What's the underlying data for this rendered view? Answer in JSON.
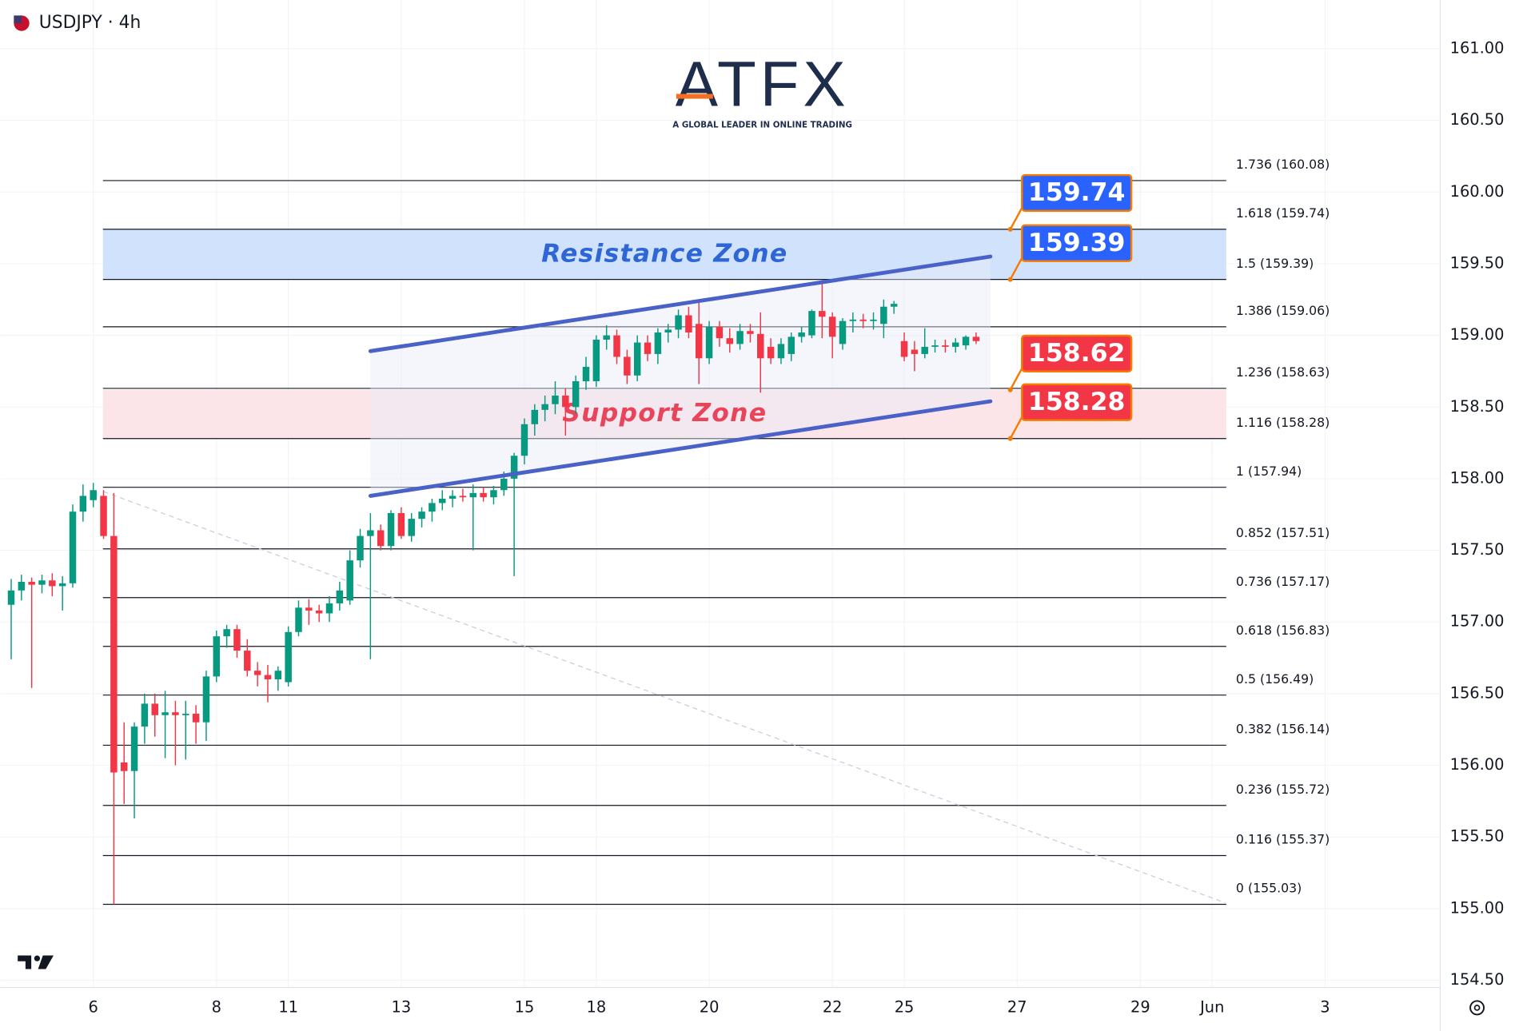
{
  "chart_data": {
    "type": "candlestick",
    "title": "USDJPY · 4h",
    "logo": {
      "name": "ATFX",
      "tagline": "A GLOBAL LEADER IN ONLINE TRADING"
    },
    "up_color": "#089981",
    "down_color": "#f23645",
    "grid": true,
    "xlim": [
      -9.06,
      131.22
    ],
    "ylim": [
      154.45,
      161.34
    ],
    "xticks": [
      {
        "value": 0,
        "label": "6"
      },
      {
        "value": 12,
        "label": "8"
      },
      {
        "value": 19,
        "label": "11"
      },
      {
        "value": 30,
        "label": "13"
      },
      {
        "value": 42,
        "label": "15"
      },
      {
        "value": 49,
        "label": "18"
      },
      {
        "value": 60,
        "label": "20"
      },
      {
        "value": 72,
        "label": "22"
      },
      {
        "value": 79,
        "label": "25"
      },
      {
        "value": 90,
        "label": "27"
      },
      {
        "value": 102,
        "label": "29"
      },
      {
        "value": 109,
        "label": "Jun"
      },
      {
        "value": 120,
        "label": "3"
      }
    ],
    "yticks": [
      {
        "value": 154.5,
        "label": "154.50"
      },
      {
        "value": 155,
        "label": "155.00"
      },
      {
        "value": 155.5,
        "label": "155.50"
      },
      {
        "value": 156,
        "label": "156.00"
      },
      {
        "value": 156.5,
        "label": "156.50"
      },
      {
        "value": 157,
        "label": "157.00"
      },
      {
        "value": 157.5,
        "label": "157.50"
      },
      {
        "value": 158,
        "label": "158.00"
      },
      {
        "value": 158.5,
        "label": "158.50"
      },
      {
        "value": 159,
        "label": "159.00"
      },
      {
        "value": 159.5,
        "label": "159.50"
      },
      {
        "value": 160,
        "label": "160.00"
      },
      {
        "value": 160.5,
        "label": "160.50"
      },
      {
        "value": 161,
        "label": "161.00"
      }
    ],
    "x": [
      -8,
      -7,
      -6,
      -5,
      -4,
      -3,
      -2,
      -1,
      0,
      1,
      2,
      3,
      4,
      5,
      6,
      7,
      8,
      9,
      10,
      11,
      12,
      13,
      14,
      15,
      16,
      17,
      18,
      19,
      20,
      21,
      22,
      23,
      24,
      25,
      26,
      27,
      28,
      29,
      30,
      31,
      32,
      33,
      34,
      35,
      36,
      37,
      38,
      39,
      40,
      41,
      42,
      43,
      44,
      45,
      46,
      47,
      48,
      49,
      50,
      51,
      52,
      53,
      54,
      55,
      56,
      57,
      58,
      59,
      60,
      61,
      62,
      63,
      64,
      65,
      66,
      67,
      68,
      69,
      70,
      71,
      72,
      73,
      74,
      75,
      76,
      77,
      78,
      79,
      80,
      81,
      82,
      83,
      84,
      85,
      86
    ],
    "open": [
      157.12,
      157.22,
      157.28,
      157.26,
      157.29,
      157.25,
      157.27,
      157.77,
      157.85,
      157.88,
      157.6,
      156.02,
      155.96,
      156.27,
      156.43,
      156.35,
      156.37,
      156.35,
      156.36,
      156.3,
      156.62,
      156.9,
      156.95,
      156.8,
      156.66,
      156.63,
      156.6,
      156.58,
      156.93,
      157.1,
      157.08,
      157.06,
      157.13,
      157.15,
      157.43,
      157.6,
      157.64,
      157.53,
      157.76,
      157.6,
      157.72,
      157.77,
      157.83,
      157.86,
      157.88,
      157.87,
      157.9,
      157.87,
      157.92,
      158.0,
      158.16,
      158.38,
      158.48,
      158.52,
      158.58,
      158.5,
      158.68,
      158.68,
      158.97,
      159.0,
      158.85,
      158.72,
      158.95,
      158.87,
      159.02,
      159.04,
      159.14,
      159.08,
      158.84,
      159.06,
      158.98,
      158.94,
      159.03,
      159.01,
      158.92,
      158.84,
      158.87,
      158.99,
      159.0,
      159.17,
      159.13,
      158.94,
      159.1,
      159.11,
      159.1,
      159.08,
      159.2,
      158.96,
      158.9,
      158.87,
      158.92,
      158.93,
      158.92,
      158.93,
      158.99
    ],
    "high": [
      157.3,
      157.33,
      157.31,
      157.33,
      157.34,
      157.32,
      157.82,
      157.96,
      157.97,
      157.92,
      157.9,
      156.3,
      156.3,
      156.5,
      156.5,
      156.52,
      156.45,
      156.45,
      156.42,
      156.66,
      156.94,
      156.98,
      156.98,
      156.88,
      156.72,
      156.7,
      156.69,
      156.97,
      157.15,
      157.16,
      157.12,
      157.18,
      157.28,
      157.5,
      157.65,
      157.76,
      157.68,
      157.78,
      157.8,
      157.76,
      157.8,
      157.86,
      157.92,
      157.92,
      157.93,
      157.96,
      157.94,
      157.95,
      158.05,
      158.18,
      158.42,
      158.52,
      158.58,
      158.68,
      158.63,
      158.72,
      158.85,
      159.0,
      159.07,
      159.04,
      158.9,
      159.0,
      159.0,
      159.05,
      159.08,
      159.18,
      159.2,
      159.24,
      159.1,
      159.1,
      159.05,
      159.08,
      159.08,
      159.16,
      158.98,
      158.98,
      159.02,
      159.06,
      159.18,
      159.37,
      159.16,
      159.12,
      159.16,
      159.15,
      159.16,
      159.25,
      159.24,
      159.02,
      158.96,
      159.05,
      158.97,
      158.97,
      158.98,
      159.0,
      159.02
    ],
    "low": [
      156.74,
      157.15,
      156.54,
      157.2,
      157.18,
      157.08,
      157.24,
      157.7,
      157.8,
      157.58,
      155.03,
      155.73,
      155.63,
      156.15,
      156.2,
      156.05,
      156.0,
      156.04,
      156.15,
      156.17,
      156.58,
      156.82,
      156.75,
      156.62,
      156.55,
      156.44,
      156.52,
      156.55,
      156.9,
      156.98,
      157.0,
      157.0,
      157.08,
      157.12,
      157.38,
      156.74,
      157.5,
      157.5,
      157.58,
      157.56,
      157.66,
      157.7,
      157.78,
      157.8,
      157.84,
      157.5,
      157.84,
      157.82,
      157.88,
      157.32,
      158.1,
      158.3,
      158.4,
      158.45,
      158.3,
      158.45,
      158.62,
      158.64,
      158.9,
      158.8,
      158.66,
      158.68,
      158.82,
      158.8,
      158.95,
      158.98,
      158.98,
      158.66,
      158.8,
      158.92,
      158.88,
      158.9,
      158.95,
      158.6,
      158.8,
      158.8,
      158.82,
      158.95,
      158.98,
      158.98,
      158.84,
      158.9,
      159.02,
      159.05,
      159.04,
      158.98,
      159.15,
      158.82,
      158.75,
      158.84,
      158.88,
      158.88,
      158.88,
      158.9,
      158.94
    ],
    "close": [
      157.22,
      157.28,
      157.26,
      157.29,
      157.25,
      157.27,
      157.77,
      157.88,
      157.92,
      157.6,
      155.95,
      155.96,
      156.27,
      156.43,
      156.35,
      156.37,
      156.35,
      156.36,
      156.3,
      156.62,
      156.9,
      156.95,
      156.8,
      156.66,
      156.63,
      156.6,
      156.66,
      156.93,
      157.1,
      157.08,
      157.06,
      157.13,
      157.22,
      157.43,
      157.6,
      157.64,
      157.53,
      157.76,
      157.6,
      157.72,
      157.77,
      157.83,
      157.86,
      157.88,
      157.87,
      157.9,
      157.87,
      157.92,
      158.0,
      158.16,
      158.38,
      158.48,
      158.52,
      158.58,
      158.5,
      158.68,
      158.78,
      158.97,
      159.0,
      158.85,
      158.72,
      158.95,
      158.87,
      159.02,
      159.04,
      159.14,
      159.02,
      158.84,
      159.06,
      158.98,
      158.94,
      159.03,
      159.01,
      158.84,
      158.84,
      158.94,
      158.99,
      159.02,
      159.17,
      159.13,
      158.99,
      159.1,
      159.11,
      159.1,
      159.11,
      159.2,
      159.22,
      158.85,
      158.87,
      158.92,
      158.93,
      158.92,
      158.95,
      158.99,
      158.96
    ],
    "fib_levels": [
      {
        "value": 160.08,
        "label": "1.736 (160.08)"
      },
      {
        "value": 159.74,
        "label": "1.618 (159.74)"
      },
      {
        "value": 159.39,
        "label": "1.5 (159.39)"
      },
      {
        "value": 159.06,
        "label": "1.386 (159.06)"
      },
      {
        "value": 158.63,
        "label": "1.236 (158.63)"
      },
      {
        "value": 158.28,
        "label": "1.116 (158.28)"
      },
      {
        "value": 157.94,
        "label": "1 (157.94)"
      },
      {
        "value": 157.51,
        "label": "0.852 (157.51)"
      },
      {
        "value": 157.17,
        "label": "0.736 (157.17)"
      },
      {
        "value": 156.83,
        "label": "0.618 (156.83)"
      },
      {
        "value": 156.49,
        "label": "0.5 (156.49)"
      },
      {
        "value": 156.14,
        "label": "0.382 (156.14)"
      },
      {
        "value": 155.72,
        "label": "0.236 (155.72)"
      },
      {
        "value": 155.37,
        "label": "0.116 (155.37)"
      },
      {
        "value": 155.03,
        "label": "0 (155.03)"
      }
    ],
    "zones": [
      {
        "name": "Resistance Zone",
        "range": [
          159.39,
          159.74
        ],
        "color": "#c9defc",
        "text_color": "#2f66d6"
      },
      {
        "name": "Support Zone",
        "range": [
          158.28,
          158.62
        ],
        "color": "#fbe1e5",
        "text_color": "#e8455a"
      }
    ],
    "channel": {
      "color": "#4a62c8",
      "x": [
        27,
        87.4
      ],
      "upper": [
        158.89,
        159.55
      ],
      "lower": [
        157.88,
        158.54
      ]
    },
    "trend_line": {
      "x": [
        1,
        110.3
      ],
      "y": [
        157.91,
        155.04
      ]
    },
    "price_tags": [
      {
        "value": 159.74,
        "color": "#2962ff"
      },
      {
        "value": 159.39,
        "color": "#2962ff"
      },
      {
        "value": 158.62,
        "color": "#f23645"
      },
      {
        "value": 158.28,
        "color": "#f23645"
      }
    ]
  }
}
